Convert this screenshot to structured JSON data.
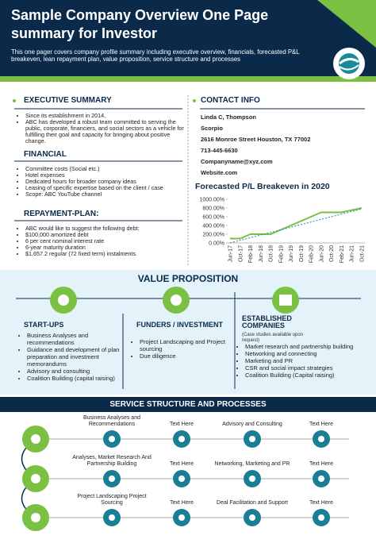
{
  "header": {
    "title": "Sample Company Overview One Page summary for Investor",
    "description": "This one pager covers company profile summary including executive overview, financials, forecasted P&L breakeven, lean repayment plan, value proposition, service structure and processes"
  },
  "executive_summary": {
    "heading": "EXECUTIVE SUMMARY",
    "items": [
      "Since its establishment in 2014,",
      "ABC has developed a robust team committed to serving the public, corporate, financiers, and social sectors as a vehicle for fulfilling their goal and capacity for bringing about positive change."
    ]
  },
  "financial": {
    "heading": "FINANCIAL",
    "items": [
      "Committee costs (Social etc.)",
      "Hotel expenses",
      "Dedicated hours for broader company ideas",
      "Leasing of specific expertise based on the client / case",
      "Scope: ABC YouTube channel"
    ]
  },
  "repayment_plan": {
    "heading": "REPAYMENT-PLAN:",
    "items": [
      "ABC would like to suggest the following debt:",
      "$100,000 amortized debt",
      "6 per cent nominal interest rate",
      "6-year maturity duration",
      "$1,657.2 regular (72 fixed term) instalments."
    ]
  },
  "contact": {
    "heading": "CONTACT INFO",
    "lines": [
      "Linda C, Thompson",
      "Scorpio",
      "2616 Monroe Street Houston, TX 77002",
      "713-445-6630",
      "Companyname@xyz.com",
      "Website.com"
    ]
  },
  "chart_data": {
    "type": "line",
    "title": "Forecasted P/L Breakeven in 2020",
    "categories": [
      "Jun-17",
      "Oct-17",
      "Feb-18",
      "Jun-18",
      "Oct-18",
      "Feb-19",
      "Jun-19",
      "Oct-19",
      "Feb-20",
      "Jun-20",
      "Oct-20",
      "Feb-21",
      "Jun-21",
      "Oct-21"
    ],
    "series": [
      {
        "color": "#7ac143",
        "values": [
          100,
          100,
          200,
          200,
          200,
          300,
          400,
          500,
          600,
          700,
          700,
          700,
          750,
          800
        ]
      },
      {
        "color": "#2a7fc1",
        "dashed": true,
        "values": [
          0,
          60,
          120,
          180,
          240,
          300,
          360,
          420,
          480,
          540,
          600,
          660,
          720,
          780
        ]
      }
    ],
    "ylim": [
      0,
      1000
    ],
    "yticks": [
      {
        "value": 0,
        "label": "0.00%"
      },
      {
        "value": 200,
        "label": "200.00%"
      },
      {
        "value": 400,
        "label": "400.00%"
      },
      {
        "value": 600,
        "label": "600.00%"
      },
      {
        "value": 800,
        "label": "800.00%"
      },
      {
        "value": 1000,
        "label": "1000.00%"
      }
    ],
    "grid": false
  },
  "value_proposition": {
    "heading": "VALUE PROPOSITION",
    "columns": [
      {
        "heading": "START-UPS",
        "items": [
          "Business Analyses and recommendations",
          "Guidance and development of plan preparation and investment memorandums",
          "Advisory and consulting",
          "Coalition Building (capital raising)"
        ]
      },
      {
        "heading": "FUNDERS / INVESTMENT",
        "items": [
          "Project Landscaping and Project sourcing",
          "Due diligence"
        ]
      },
      {
        "heading": "ESTABLISHED COMPANIES",
        "note": "(Case studies available upon request)",
        "items": [
          "Market research and partnership building",
          "Networking and connecting",
          "Marketing and PR",
          "CSR and social impact strategies",
          "Coalition Building (Capital raising)"
        ]
      }
    ]
  },
  "services": {
    "heading": "SERVICE STRUCTURE AND PROCESSES",
    "rows": [
      [
        "Business Analyses and Recommendations",
        "Text Here",
        "Advisory and Consulting",
        "Text Here"
      ],
      [
        "Analyses, Market Research And Partnership Building",
        "Text Here",
        "Networking, Marketing and PR",
        "Text Here"
      ],
      [
        "Project Landscaping Project Sourcing",
        "Text Here",
        "Deal Facilitation and Support",
        "Text Here"
      ]
    ]
  }
}
